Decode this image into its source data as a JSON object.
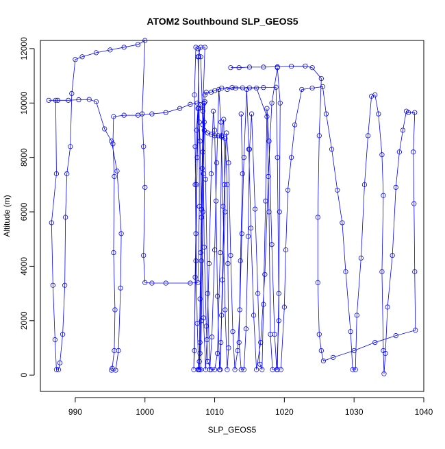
{
  "chart_data": {
    "type": "line",
    "title": "ATOM2 Southbound SLP_GEOS5",
    "xlabel": "SLP_GEOS5",
    "ylabel": "Altitude (m)",
    "xlim": [
      985,
      1040
    ],
    "ylim": [
      -600,
      12300
    ],
    "xticks": [
      990,
      1000,
      1010,
      1020,
      1030,
      1040
    ],
    "yticks": [
      0,
      2000,
      4000,
      6000,
      8000,
      10000,
      12000
    ],
    "grid": false,
    "legend": "none",
    "marker": "open-circle",
    "color": "#0000ff",
    "series": [
      {
        "values": [
          [
            986.2,
            10100
          ],
          [
            987.5,
            10100
          ],
          [
            989.0,
            10100
          ],
          [
            990.5,
            10120
          ],
          [
            992.0,
            10130
          ],
          [
            993.0,
            10050
          ],
          [
            994.2,
            9050
          ],
          [
            995.2,
            8600
          ],
          [
            996.0,
            7500
          ],
          [
            996.6,
            5200
          ],
          [
            996.5,
            3200
          ],
          [
            996.2,
            900
          ],
          [
            995.8,
            180
          ],
          [
            995.2,
            180
          ],
          [
            995.3,
            250
          ],
          [
            995.6,
            900
          ],
          [
            995.7,
            2400
          ],
          [
            995.5,
            4500
          ],
          [
            995.6,
            7300
          ],
          [
            995.4,
            8500
          ],
          [
            995.5,
            9500
          ],
          [
            997.0,
            9550
          ],
          [
            999.0,
            9550
          ],
          [
            1001.0,
            9600
          ],
          [
            1003.0,
            9650
          ],
          [
            1005.0,
            9800
          ],
          [
            1006.5,
            9950
          ],
          [
            1007.5,
            10000
          ],
          [
            1008.6,
            10050
          ],
          [
            1008.2,
            7600
          ],
          [
            1008.0,
            4500
          ],
          [
            1007.9,
            1200
          ],
          [
            1007.8,
            200
          ],
          [
            1008.0,
            200
          ],
          [
            1008.1,
            2000
          ],
          [
            1008.3,
            6000
          ],
          [
            1008.5,
            9300
          ],
          [
            1008.6,
            10300
          ],
          [
            1008.8,
            10400
          ],
          [
            1009.5,
            10400
          ],
          [
            1010.0,
            10450
          ],
          [
            1011.0,
            10550
          ],
          [
            1013.0,
            10550
          ],
          [
            1015.0,
            10560
          ],
          [
            1017.0,
            10570
          ],
          [
            1018.8,
            10580
          ],
          [
            1019.0,
            8000
          ],
          [
            1019.2,
            3000
          ],
          [
            1019.0,
            200
          ],
          [
            1018.3,
            200
          ],
          [
            1018.0,
            1500
          ],
          [
            1017.8,
            6000
          ],
          [
            1017.5,
            9500
          ],
          [
            1016.0,
            10550
          ],
          [
            1014.0,
            10560
          ],
          [
            1012.5,
            10570
          ],
          [
            1011.8,
            10500
          ]
        ]
      },
      {
        "values": [
          [
            987.2,
            10100
          ],
          [
            987.3,
            7400
          ],
          [
            986.6,
            5600
          ],
          [
            986.8,
            3300
          ],
          [
            987.1,
            1300
          ],
          [
            987.3,
            200
          ],
          [
            987.6,
            200
          ],
          [
            987.8,
            450
          ],
          [
            988.2,
            1500
          ],
          [
            988.5,
            3300
          ],
          [
            988.6,
            5800
          ],
          [
            988.8,
            7400
          ],
          [
            989.3,
            8400
          ],
          [
            989.5,
            10350
          ],
          [
            990.0,
            11600
          ],
          [
            991.0,
            11700
          ],
          [
            993.0,
            11850
          ],
          [
            995.0,
            11950
          ],
          [
            997.0,
            12050
          ],
          [
            999.0,
            12150
          ],
          [
            1000.0,
            12300
          ],
          [
            999.6,
            9600
          ],
          [
            999.8,
            8400
          ],
          [
            1000.0,
            6900
          ],
          [
            999.8,
            4400
          ],
          [
            1000.0,
            3400
          ],
          [
            1001.0,
            3380
          ],
          [
            1003.0,
            3380
          ],
          [
            1006.5,
            3380
          ],
          [
            1007.6,
            3400
          ],
          [
            1007.8,
            6200
          ],
          [
            1007.8,
            9300
          ],
          [
            1007.6,
            11700
          ],
          [
            1008.0,
            12050
          ],
          [
            1008.6,
            12050
          ],
          [
            1008.3,
            9700
          ],
          [
            1008.4,
            7400
          ],
          [
            1008.5,
            4700
          ],
          [
            1008.8,
            1800
          ],
          [
            1009.0,
            500
          ],
          [
            1009.5,
            200
          ],
          [
            1010.0,
            200
          ],
          [
            1010.4,
            800
          ],
          [
            1010.8,
            4500
          ],
          [
            1011.0,
            8800
          ],
          [
            1011.3,
            9400
          ],
          [
            1011.5,
            6000
          ],
          [
            1011.0,
            2200
          ],
          [
            1010.8,
            200
          ]
        ]
      },
      {
        "values": [
          [
            1012.3,
            11300
          ],
          [
            1013.5,
            11300
          ],
          [
            1015.0,
            11320
          ],
          [
            1017.0,
            11320
          ],
          [
            1019.0,
            11330
          ],
          [
            1021.0,
            11350
          ],
          [
            1023.0,
            11360
          ],
          [
            1024.0,
            11300
          ],
          [
            1025.3,
            10900
          ],
          [
            1025.0,
            8800
          ],
          [
            1024.8,
            5800
          ],
          [
            1024.8,
            3400
          ],
          [
            1025.0,
            1500
          ],
          [
            1025.3,
            900
          ],
          [
            1025.6,
            520
          ],
          [
            1027.0,
            650
          ],
          [
            1030.0,
            900
          ],
          [
            1033.0,
            1200
          ],
          [
            1036.0,
            1450
          ],
          [
            1038.8,
            1650
          ],
          [
            1038.7,
            3800
          ],
          [
            1038.6,
            6300
          ],
          [
            1038.5,
            8200
          ],
          [
            1038.7,
            9650
          ],
          [
            1037.8,
            9650
          ],
          [
            1037.5,
            9700
          ],
          [
            1037.0,
            9000
          ],
          [
            1036.5,
            8200
          ],
          [
            1036.0,
            6900
          ],
          [
            1035.5,
            4400
          ],
          [
            1034.8,
            2500
          ],
          [
            1034.5,
            800
          ],
          [
            1034.3,
            50
          ],
          [
            1034.2,
            900
          ],
          [
            1034.0,
            3800
          ],
          [
            1034.2,
            6600
          ],
          [
            1034.0,
            8100
          ],
          [
            1033.5,
            9600
          ],
          [
            1033.0,
            10300
          ],
          [
            1032.5,
            10250
          ],
          [
            1032.0,
            8800
          ],
          [
            1031.5,
            7000
          ],
          [
            1031.0,
            4300
          ],
          [
            1030.4,
            2200
          ],
          [
            1030.2,
            200
          ],
          [
            1029.8,
            200
          ],
          [
            1029.5,
            1600
          ],
          [
            1028.8,
            3800
          ],
          [
            1028.3,
            5600
          ],
          [
            1027.6,
            6800
          ],
          [
            1026.8,
            8300
          ],
          [
            1026.0,
            9600
          ],
          [
            1025.5,
            10600
          ],
          [
            1024.0,
            10550
          ],
          [
            1022.5,
            10500
          ],
          [
            1021.5,
            9200
          ],
          [
            1021.0,
            8000
          ],
          [
            1020.5,
            6800
          ],
          [
            1020.2,
            4600
          ],
          [
            1020.0,
            2500
          ],
          [
            1019.5,
            200
          ]
        ]
      },
      {
        "values": [
          [
            1013.8,
            9600
          ],
          [
            1014.0,
            7400
          ],
          [
            1013.7,
            4200
          ],
          [
            1013.5,
            1200
          ],
          [
            1013.8,
            200
          ],
          [
            1014.2,
            200
          ],
          [
            1014.5,
            1700
          ],
          [
            1014.8,
            5100
          ],
          [
            1015.0,
            8300
          ],
          [
            1015.3,
            9600
          ],
          [
            1015.8,
            6100
          ],
          [
            1016.2,
            3000
          ],
          [
            1016.5,
            400
          ],
          [
            1016.8,
            200
          ],
          [
            1017.0,
            2600
          ],
          [
            1017.3,
            6400
          ],
          [
            1017.5,
            9800
          ],
          [
            1017.8,
            8600
          ],
          [
            1018.2,
            4800
          ],
          [
            1018.6,
            1500
          ],
          [
            1018.9,
            200
          ],
          [
            1019.2,
            2000
          ],
          [
            1019.3,
            6000
          ],
          [
            1019.4,
            10000
          ],
          [
            1019.0,
            11300
          ],
          [
            1018.2,
            10000
          ],
          [
            1017.7,
            7300
          ],
          [
            1017.2,
            3700
          ],
          [
            1016.6,
            1200
          ],
          [
            1016.0,
            200
          ],
          [
            1015.6,
            2200
          ],
          [
            1015.2,
            5400
          ],
          [
            1014.9,
            8300
          ],
          [
            1014.6,
            10500
          ],
          [
            1014.2,
            8000
          ],
          [
            1013.9,
            5200
          ],
          [
            1013.6,
            2400
          ],
          [
            1013.3,
            900
          ],
          [
            1012.9,
            200
          ],
          [
            1012.6,
            1600
          ],
          [
            1012.3,
            4400
          ],
          [
            1012.0,
            7800
          ],
          [
            1011.7,
            8900
          ],
          [
            1011.4,
            7000
          ],
          [
            1011.1,
            3500
          ],
          [
            1010.9,
            1200
          ],
          [
            1010.7,
            200
          ],
          [
            1010.4,
            2900
          ],
          [
            1010.2,
            6400
          ],
          [
            1010.0,
            9000
          ],
          [
            1009.8,
            9700
          ],
          [
            1009.5,
            7400
          ],
          [
            1009.2,
            4100
          ],
          [
            1008.9,
            1300
          ],
          [
            1008.7,
            200
          ],
          [
            1008.4,
            2100
          ],
          [
            1008.1,
            5800
          ],
          [
            1007.9,
            8600
          ],
          [
            1007.7,
            9800
          ],
          [
            1007.4,
            7000
          ],
          [
            1007.2,
            3600
          ],
          [
            1007.1,
            900
          ],
          [
            1007.0,
            200
          ],
          [
            1007.3,
            4200
          ],
          [
            1007.5,
            8000
          ],
          [
            1007.7,
            11700
          ]
        ]
      },
      {
        "values": [
          [
            1007.2,
            7000
          ],
          [
            1007.4,
            9000
          ],
          [
            1007.6,
            9800
          ],
          [
            1008.2,
            9900
          ],
          [
            1008.5,
            9000
          ],
          [
            1009.0,
            8900
          ],
          [
            1009.5,
            8850
          ],
          [
            1010.0,
            8800
          ],
          [
            1010.5,
            8800
          ],
          [
            1011.0,
            8750
          ],
          [
            1011.5,
            8700
          ],
          [
            1011.8,
            7000
          ],
          [
            1011.9,
            4100
          ],
          [
            1012.0,
            1000
          ],
          [
            1011.8,
            200
          ],
          [
            1011.5,
            2400
          ],
          [
            1011.2,
            6200
          ],
          [
            1010.9,
            9300
          ],
          [
            1010.6,
            10500
          ],
          [
            1010.3,
            7800
          ],
          [
            1010.0,
            4600
          ],
          [
            1009.6,
            1400
          ],
          [
            1009.3,
            200
          ],
          [
            1009.0,
            3000
          ],
          [
            1008.7,
            7200
          ],
          [
            1008.5,
            10000
          ],
          [
            1008.3,
            8200
          ],
          [
            1008.1,
            4200
          ],
          [
            1007.9,
            800
          ],
          [
            1007.7,
            200
          ],
          [
            1007.5,
            1900
          ],
          [
            1007.3,
            5200
          ],
          [
            1007.2,
            8400
          ],
          [
            1007.1,
            10300
          ],
          [
            1007.3,
            12050
          ],
          [
            1007.6,
            12000
          ],
          [
            1008.0,
            11700
          ],
          [
            1008.3,
            9200
          ],
          [
            1008.1,
            6100
          ],
          [
            1007.9,
            2800
          ],
          [
            1007.8,
            500
          ],
          [
            1007.6,
            200
          ]
        ]
      }
    ]
  }
}
